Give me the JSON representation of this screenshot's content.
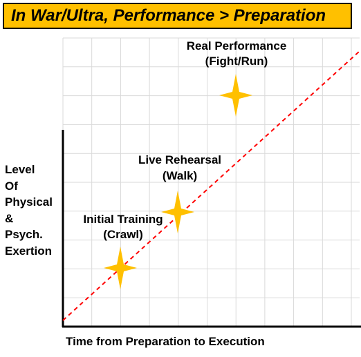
{
  "title": "In War/Ultra, Performance > Preparation",
  "y_axis_label": [
    "Level",
    "Of",
    "Physical",
    "&",
    "Psych.",
    "Exertion"
  ],
  "x_axis_label": "Time from Preparation to Execution",
  "stages": [
    {
      "line1": "Initial Training",
      "line2": "(Crawl)",
      "level": 1
    },
    {
      "line1": "Live Rehearsal",
      "line2": "(Walk)",
      "level": 2
    },
    {
      "line1": "Real Performance",
      "line2": "(Fight/Run)",
      "level": 3
    }
  ],
  "colors": {
    "title_bg": "#FFC000",
    "star": "#FFC000",
    "trend_line": "#FF0000",
    "grid": "#D9D9D9"
  }
}
